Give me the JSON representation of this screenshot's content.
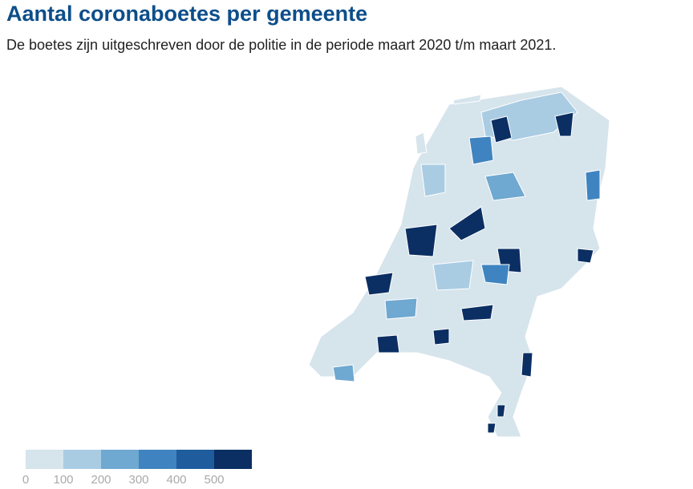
{
  "header": {
    "title": "Aantal coronaboetes per gemeente",
    "subtitle": "De boetes zijn uitgeschreven door de politie in de periode maart 2020 t/m maart 2021."
  },
  "legend": {
    "ticks": [
      0,
      100,
      200,
      300,
      400,
      500
    ],
    "colors": [
      "#d6e4ec",
      "#a9cce3",
      "#6fa8d0",
      "#3f84c0",
      "#1f5c9e",
      "#0b2f63"
    ]
  }
}
